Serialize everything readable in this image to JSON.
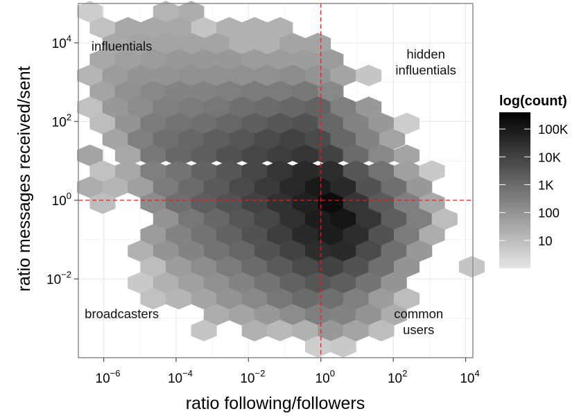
{
  "chart_data": {
    "type": "heatmap",
    "subtype": "hexbin",
    "xlabel": "ratio following/followers",
    "ylabel": "ratio messages received/sent",
    "x_scale": "log10",
    "y_scale": "log10",
    "xlim_log10": [
      -6.7,
      4.2
    ],
    "ylim_log10": [
      -4.0,
      5.0
    ],
    "x_ticks": [
      {
        "base": "10",
        "exp": "−6",
        "value": -6
      },
      {
        "base": "10",
        "exp": "−4",
        "value": -4
      },
      {
        "base": "10",
        "exp": "−2",
        "value": -2
      },
      {
        "base": "10",
        "exp": "0",
        "value": 0
      },
      {
        "base": "10",
        "exp": "2",
        "value": 2
      },
      {
        "base": "10",
        "exp": "4",
        "value": 4
      }
    ],
    "y_ticks": [
      {
        "base": "10",
        "exp": "−2",
        "value": -2
      },
      {
        "base": "10",
        "exp": "0",
        "value": 0
      },
      {
        "base": "10",
        "exp": "2",
        "value": 2
      },
      {
        "base": "10",
        "exp": "4",
        "value": 4
      }
    ],
    "reference_lines": {
      "x_log10": 0,
      "y_log10": 0,
      "color": "#e0201f",
      "style": "dashed"
    },
    "annotations": [
      {
        "lines": [
          "influentials"
        ],
        "x_log10": -5.5,
        "y_log10": 3.8
      },
      {
        "lines": [
          "hidden",
          "influentials"
        ],
        "x_log10": 2.9,
        "y_log10": 3.6
      },
      {
        "lines": [
          "broadcasters"
        ],
        "x_log10": -5.5,
        "y_log10": -3.0
      },
      {
        "lines": [
          "common",
          "users"
        ],
        "x_log10": 2.7,
        "y_log10": -3.0
      }
    ],
    "legend": {
      "title": "log(count)",
      "placement": "right",
      "labels": [
        "100K",
        "10K",
        "1K",
        "100",
        "10"
      ],
      "label_log10_values": [
        5,
        4,
        3,
        2,
        1
      ],
      "range_log10": [
        0,
        5.6
      ],
      "color_low": "#e6e6e6",
      "color_high": "#000000"
    },
    "grid": true,
    "panel_background": "#ffffff",
    "grid_color": "#ececec",
    "panel_border_color": "#8c8c8c",
    "hex_size_log10": {
      "dx": 0.7,
      "dy": 0.404
    },
    "hex_rows": [
      {
        "y": 4.79,
        "cells": [
          [
            -6.38,
            0.6
          ],
          [
            -4.28,
            1.2
          ],
          [
            -3.58,
            1.4
          ]
        ]
      },
      {
        "y": 4.38,
        "cells": [
          [
            -6.03,
            0.9
          ],
          [
            -5.33,
            1.5
          ],
          [
            -4.63,
            1.5
          ],
          [
            -3.93,
            1.5
          ],
          [
            -3.23,
            0.8
          ],
          [
            -2.53,
            1.3
          ],
          [
            -1.83,
            1.3
          ],
          [
            -1.13,
            1.3
          ]
        ]
      },
      {
        "y": 3.98,
        "cells": [
          [
            -5.68,
            1.5
          ],
          [
            -4.98,
            1.6
          ],
          [
            -4.28,
            1.6
          ],
          [
            -3.58,
            1.6
          ],
          [
            -2.88,
            1.6
          ],
          [
            -2.18,
            1.3
          ],
          [
            -1.48,
            1.3
          ],
          [
            -0.78,
            1.6
          ],
          [
            -0.08,
            1.6
          ]
        ]
      },
      {
        "y": 3.57,
        "cells": [
          [
            -6.03,
            1.5
          ],
          [
            -5.33,
            1.7
          ],
          [
            -4.63,
            1.8
          ],
          [
            -3.93,
            1.9
          ],
          [
            -3.23,
            1.9
          ],
          [
            -2.53,
            1.9
          ],
          [
            -1.83,
            1.8
          ],
          [
            -1.13,
            1.8
          ],
          [
            -0.43,
            1.8
          ],
          [
            0.27,
            1.8
          ]
        ]
      },
      {
        "y": 3.17,
        "cells": [
          [
            -6.38,
            1.2
          ],
          [
            -5.68,
            1.8
          ],
          [
            -4.98,
            2.0
          ],
          [
            -4.28,
            2.0
          ],
          [
            -3.58,
            2.1
          ],
          [
            -2.88,
            2.1
          ],
          [
            -2.18,
            2.1
          ],
          [
            -1.48,
            2.1
          ],
          [
            -0.78,
            2.2
          ],
          [
            -0.08,
            2.0
          ],
          [
            0.62,
            1.6
          ],
          [
            1.32,
            0.8
          ]
        ]
      },
      {
        "y": 2.76,
        "cells": [
          [
            -6.03,
            1.6
          ],
          [
            -5.33,
            2.1
          ],
          [
            -4.63,
            2.3
          ],
          [
            -3.93,
            2.4
          ],
          [
            -3.23,
            2.4
          ],
          [
            -2.53,
            2.5
          ],
          [
            -1.83,
            2.6
          ],
          [
            -1.13,
            2.6
          ],
          [
            -0.43,
            2.7
          ],
          [
            0.27,
            2.3
          ]
        ]
      },
      {
        "y": 2.36,
        "cells": [
          [
            -6.38,
            0.9
          ],
          [
            -5.68,
            1.9
          ],
          [
            -4.98,
            2.2
          ],
          [
            -4.28,
            2.5
          ],
          [
            -3.58,
            2.6
          ],
          [
            -2.88,
            2.7
          ],
          [
            -2.18,
            2.9
          ],
          [
            -1.48,
            3.0
          ],
          [
            -0.78,
            3.1
          ],
          [
            -0.08,
            3.2
          ],
          [
            0.62,
            2.5
          ],
          [
            1.32,
            1.9
          ]
        ]
      },
      {
        "y": 1.95,
        "cells": [
          [
            -6.03,
            1.0
          ],
          [
            -5.33,
            2.0
          ],
          [
            -4.63,
            2.6
          ],
          [
            -3.93,
            2.8
          ],
          [
            -3.23,
            2.9
          ],
          [
            -2.53,
            3.1
          ],
          [
            -1.83,
            3.3
          ],
          [
            -1.13,
            3.5
          ],
          [
            -0.43,
            3.6
          ],
          [
            0.27,
            3.1
          ],
          [
            0.97,
            2.4
          ],
          [
            1.67,
            1.9
          ],
          [
            2.37,
            0.6
          ]
        ]
      },
      {
        "y": 1.55,
        "cells": [
          [
            -5.68,
            1.6
          ],
          [
            -4.98,
            2.5
          ],
          [
            -4.28,
            2.9
          ],
          [
            -3.58,
            3.1
          ],
          [
            -2.88,
            3.3
          ],
          [
            -2.18,
            3.5
          ],
          [
            -1.48,
            3.8
          ],
          [
            -0.78,
            4.0
          ],
          [
            -0.08,
            3.8
          ],
          [
            0.62,
            3.1
          ],
          [
            1.32,
            2.4
          ],
          [
            1.97,
            1.6
          ]
        ]
      },
      {
        "y": 1.14,
        "cells": [
          [
            -6.38,
            1.6
          ],
          [
            -5.33,
            1.5
          ],
          [
            -4.63,
            2.7
          ],
          [
            -3.93,
            3.1
          ],
          [
            -3.23,
            3.3
          ],
          [
            -2.53,
            3.6
          ],
          [
            -1.83,
            3.9
          ],
          [
            -1.13,
            4.1
          ],
          [
            -0.43,
            4.3
          ],
          [
            0.27,
            4.0
          ],
          [
            0.97,
            3.0
          ],
          [
            1.67,
            2.3
          ],
          [
            2.37,
            1.6
          ]
        ]
      },
      {
        "y": 0.74,
        "cells": [
          [
            -6.03,
            0.9
          ],
          [
            -5.33,
            1.5
          ],
          [
            -4.63,
            2.5
          ],
          [
            -3.93,
            2.8
          ],
          [
            -3.23,
            3.2
          ],
          [
            -2.53,
            3.5
          ],
          [
            -1.83,
            3.9
          ],
          [
            -1.13,
            4.3
          ],
          [
            -0.43,
            4.6
          ],
          [
            0.27,
            4.5
          ],
          [
            0.97,
            3.5
          ],
          [
            1.67,
            2.8
          ],
          [
            2.37,
            1.7
          ],
          [
            3.07,
            0.7
          ]
        ]
      },
      {
        "y": 0.33,
        "cells": [
          [
            -6.38,
            1.4
          ],
          [
            -5.68,
            1.2
          ],
          [
            -4.98,
            1.7
          ],
          [
            -4.28,
            2.6
          ],
          [
            -3.58,
            3.0
          ],
          [
            -2.88,
            3.4
          ],
          [
            -2.18,
            3.8
          ],
          [
            -1.48,
            4.2
          ],
          [
            -0.78,
            4.6
          ],
          [
            -0.08,
            5.0
          ],
          [
            0.62,
            4.6
          ],
          [
            1.32,
            3.6
          ],
          [
            2.02,
            2.9
          ],
          [
            2.72,
            1.9
          ]
        ]
      },
      {
        "y": -0.07,
        "cells": [
          [
            -6.03,
            1.0
          ],
          [
            -4.63,
            2.2
          ],
          [
            -3.93,
            2.9
          ],
          [
            -3.23,
            3.3
          ],
          [
            -2.53,
            3.6
          ],
          [
            -1.83,
            4.0
          ],
          [
            -1.13,
            4.4
          ],
          [
            -0.43,
            4.8
          ],
          [
            0.27,
            5.3
          ],
          [
            0.97,
            4.3
          ],
          [
            1.67,
            3.4
          ],
          [
            2.37,
            2.5
          ],
          [
            3.07,
            1.5
          ]
        ]
      },
      {
        "y": -0.48,
        "cells": [
          [
            -4.28,
            2.0
          ],
          [
            -3.58,
            2.7
          ],
          [
            -2.88,
            3.1
          ],
          [
            -2.18,
            3.5
          ],
          [
            -1.48,
            3.9
          ],
          [
            -0.78,
            4.4
          ],
          [
            -0.08,
            4.9
          ],
          [
            0.62,
            5.1
          ],
          [
            1.32,
            4.3
          ],
          [
            2.02,
            3.3
          ],
          [
            2.72,
            2.5
          ],
          [
            3.42,
            1.0
          ]
        ]
      },
      {
        "y": -0.88,
        "cells": [
          [
            -4.63,
            1.8
          ],
          [
            -3.93,
            2.4
          ],
          [
            -3.23,
            2.8
          ],
          [
            -2.53,
            3.2
          ],
          [
            -1.83,
            3.6
          ],
          [
            -1.13,
            4.1
          ],
          [
            -0.43,
            4.6
          ],
          [
            0.27,
            4.9
          ],
          [
            0.97,
            4.5
          ],
          [
            1.67,
            3.6
          ],
          [
            2.37,
            2.6
          ],
          [
            3.07,
            1.4
          ]
        ]
      },
      {
        "y": -1.29,
        "cells": [
          [
            -4.98,
            1.3
          ],
          [
            -4.28,
            2.0
          ],
          [
            -3.58,
            2.4
          ],
          [
            -2.88,
            2.8
          ],
          [
            -2.18,
            3.1
          ],
          [
            -1.48,
            3.6
          ],
          [
            -0.78,
            4.0
          ],
          [
            -0.08,
            4.5
          ],
          [
            0.62,
            4.6
          ],
          [
            1.32,
            3.8
          ],
          [
            2.02,
            2.9
          ],
          [
            2.72,
            1.9
          ]
        ]
      },
      {
        "y": -1.69,
        "cells": [
          [
            -4.63,
            1.0
          ],
          [
            -3.93,
            1.8
          ],
          [
            -3.23,
            2.2
          ],
          [
            -2.53,
            2.6
          ],
          [
            -1.83,
            3.0
          ],
          [
            -1.13,
            3.4
          ],
          [
            -0.43,
            3.8
          ],
          [
            0.27,
            4.0
          ],
          [
            0.97,
            3.6
          ],
          [
            1.67,
            2.9
          ],
          [
            2.37,
            2.0
          ],
          [
            4.17,
            0.8
          ]
        ]
      },
      {
        "y": -2.1,
        "cells": [
          [
            -4.98,
            0.7
          ],
          [
            -4.28,
            1.3
          ],
          [
            -3.58,
            1.7
          ],
          [
            -2.88,
            2.1
          ],
          [
            -2.18,
            2.4
          ],
          [
            -1.48,
            2.8
          ],
          [
            -0.78,
            3.2
          ],
          [
            -0.08,
            3.5
          ],
          [
            0.62,
            3.3
          ],
          [
            1.32,
            2.8
          ],
          [
            2.02,
            2.0
          ]
        ]
      },
      {
        "y": -2.5,
        "cells": [
          [
            -4.63,
            0.9
          ],
          [
            -3.93,
            1.2
          ],
          [
            -3.23,
            1.6
          ],
          [
            -2.53,
            2.0
          ],
          [
            -1.83,
            2.3
          ],
          [
            -1.13,
            2.7
          ],
          [
            -0.43,
            3.0
          ],
          [
            0.27,
            2.9
          ],
          [
            0.97,
            2.5
          ],
          [
            1.67,
            1.8
          ],
          [
            2.37,
            1.0
          ]
        ]
      },
      {
        "y": -2.91,
        "cells": [
          [
            -2.88,
            1.4
          ],
          [
            -2.18,
            1.6
          ],
          [
            -1.48,
            1.9
          ],
          [
            -0.78,
            2.2
          ],
          [
            -0.08,
            2.5
          ],
          [
            0.62,
            2.4
          ],
          [
            1.32,
            2.0
          ],
          [
            2.02,
            1.4
          ]
        ]
      },
      {
        "y": -3.31,
        "cells": [
          [
            -3.23,
            0.8
          ],
          [
            -1.83,
            1.3
          ],
          [
            -1.13,
            1.1
          ],
          [
            -0.43,
            1.3
          ],
          [
            0.27,
            1.9
          ],
          [
            0.97,
            1.6
          ],
          [
            1.67,
            1.0
          ]
        ]
      },
      {
        "y": -3.72,
        "cells": [
          [
            0.62,
            0.7
          ],
          [
            -0.08,
            0.6
          ]
        ]
      }
    ]
  }
}
